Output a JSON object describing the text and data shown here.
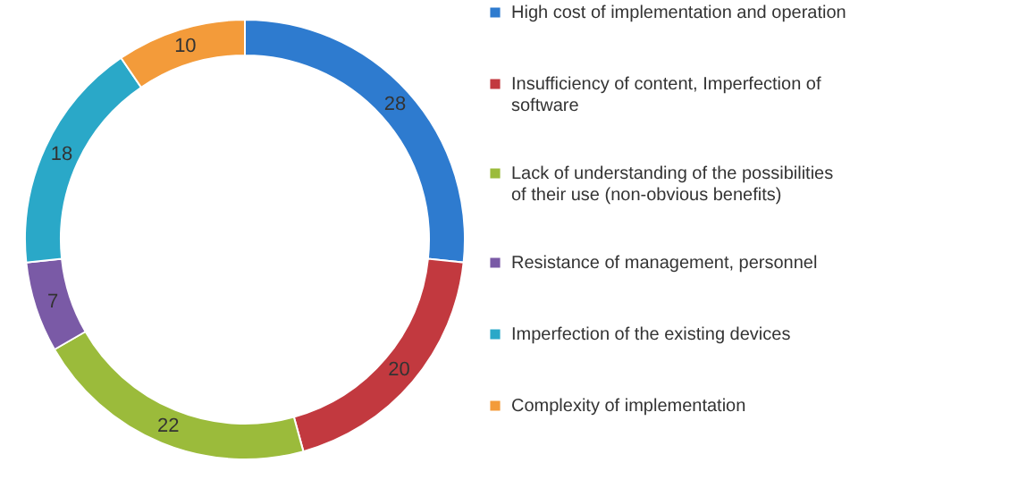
{
  "chart_data": {
    "type": "donut",
    "categories": [
      "High cost of implementation and operation",
      "Insufficiency of content, Imperfection of software",
      "Lack of understanding of the possibilities of their use (non-obvious benefits)",
      "Resistance of management, personnel",
      "Imperfection of the existing devices",
      "Complexity of implementation"
    ],
    "values": [
      28,
      20,
      22,
      7,
      18,
      10
    ],
    "colors": [
      "#2e7bcf",
      "#c2393f",
      "#9bbb3b",
      "#7a5aa6",
      "#2aa8c8",
      "#f39b3a"
    ],
    "data_labels": true,
    "legend": "right"
  }
}
